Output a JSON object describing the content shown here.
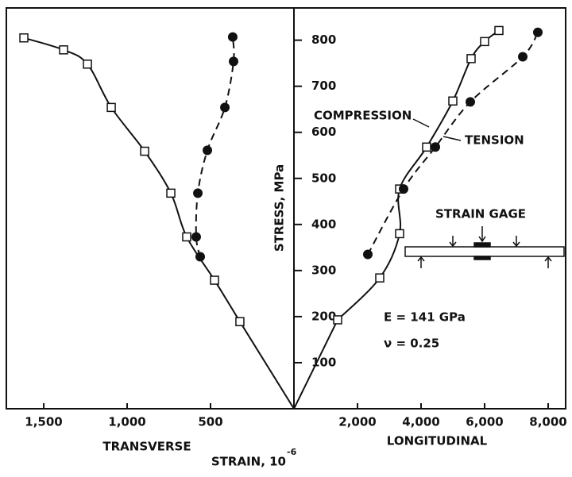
{
  "chart_data": {
    "type": "scatter",
    "ylabel": "STRESS, MPa",
    "xlabel": "STRAIN, 10",
    "xlabel_exponent": "-6",
    "ylim": [
      0,
      870
    ],
    "yticks": [
      100,
      200,
      300,
      400,
      500,
      600,
      700,
      800
    ],
    "x_axes": {
      "transverse": {
        "label": "TRANSVERSE",
        "xlim": [
          0,
          1724
        ],
        "reversed": true,
        "xticks": [
          {
            "value": 1500,
            "label": "1,500"
          },
          {
            "value": 1000,
            "label": "1,000"
          },
          500
        ]
      },
      "longitudinal": {
        "label": "LONGITUDINAL",
        "xlim": [
          0,
          8550
        ],
        "reversed": false,
        "xticks": [
          {
            "value": 2000,
            "label": "2,000"
          },
          {
            "value": 4000,
            "label": "4,000"
          },
          {
            "value": 6000,
            "label": "6,000"
          },
          {
            "value": 8000,
            "label": "8,000"
          }
        ]
      }
    },
    "series": [
      {
        "axis": "transverse",
        "marker": "square",
        "line": "solid",
        "color": "#111",
        "x": [
          324,
          476,
          643,
          738,
          895,
          1095,
          1238,
          1381,
          1619
        ],
        "values": [
          189,
          279,
          373,
          468,
          559,
          654,
          748,
          779,
          805
        ]
      },
      {
        "axis": "transverse",
        "marker": "circle",
        "line": "dashed",
        "color": "#111",
        "x": [
          562,
          586,
          576,
          519,
          414,
          362,
          367
        ],
        "values": [
          330,
          373,
          468,
          561,
          654,
          754,
          807
        ]
      },
      {
        "name": "COMPRESSION",
        "axis": "longitudinal",
        "marker": "square",
        "line": "solid",
        "color": "#111",
        "x": [
          1375,
          2700,
          3325,
          3325,
          4175,
          5000,
          5575,
          6000,
          6450
        ],
        "values": [
          193,
          284,
          380,
          477,
          568,
          668,
          760,
          797,
          821
        ]
      },
      {
        "name": "TENSION",
        "axis": "longitudinal",
        "marker": "circle",
        "line": "dashed",
        "color": "#111",
        "x": [
          2325,
          3450,
          4450,
          5550,
          7200,
          7675
        ],
        "values": [
          335,
          477,
          568,
          666,
          764,
          817
        ]
      }
    ],
    "annotations": [
      "STRAIN GAGE",
      "E = 141 GPa",
      "ν = 0.25"
    ]
  }
}
